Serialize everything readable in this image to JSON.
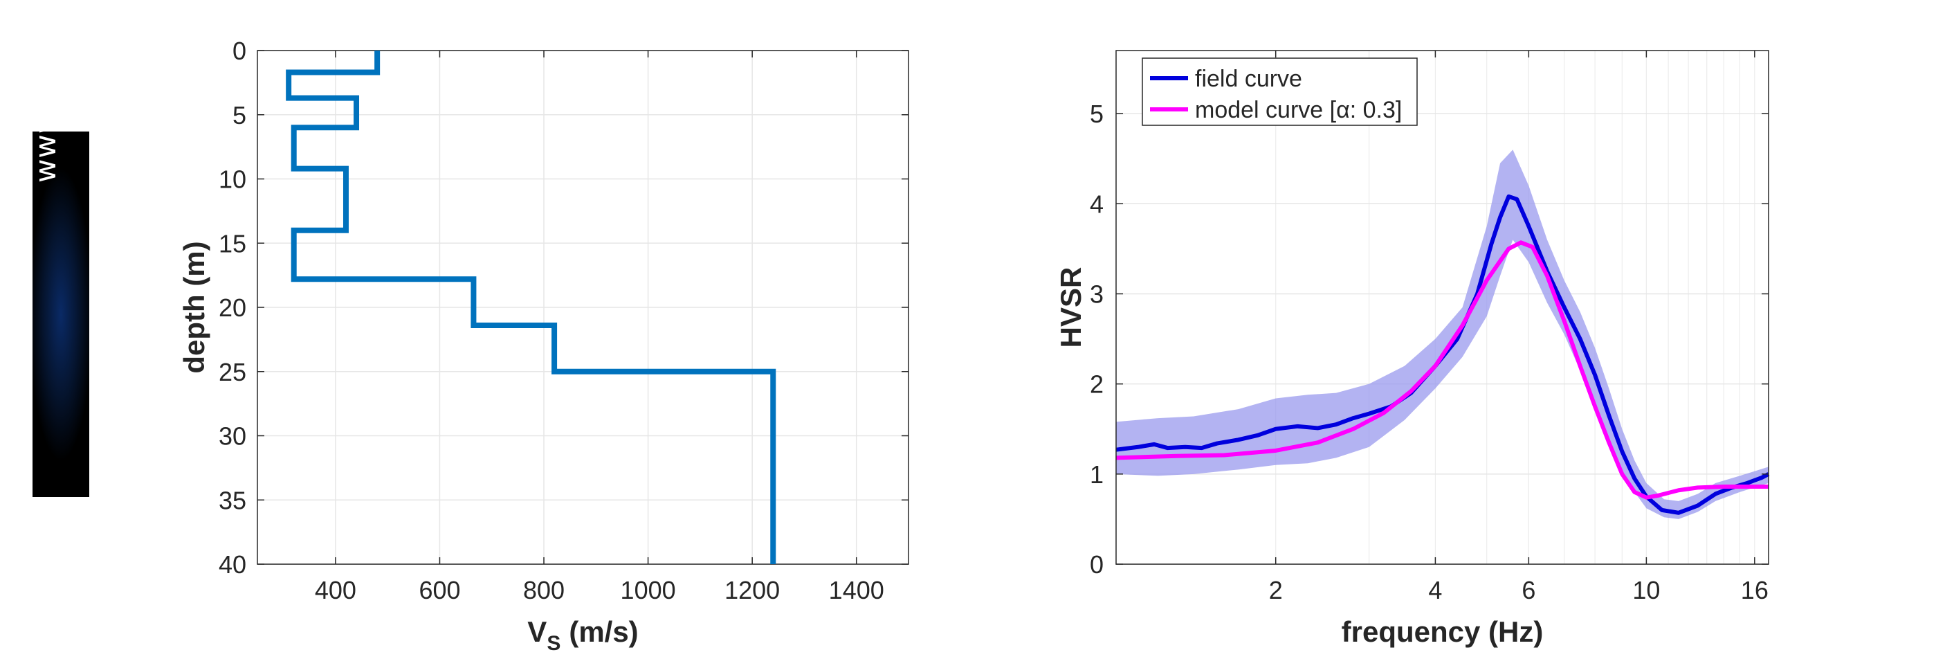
{
  "watermark": "www.winmasw.com",
  "chart_data": [
    {
      "type": "line",
      "name": "vs_profile",
      "xlabel": "V",
      "xlabel_sub": "S",
      "xlabel_unit": "(m/s)",
      "ylabel": "depth (m)",
      "xlim": [
        250,
        1500
      ],
      "ylim": [
        0,
        40
      ],
      "y_reversed": true,
      "x_ticks": [
        400,
        600,
        800,
        1000,
        1200,
        1400
      ],
      "y_ticks": [
        0,
        5,
        10,
        15,
        20,
        25,
        30,
        35,
        40
      ],
      "grid": true,
      "color": "#0072BD",
      "layers": [
        {
          "top": 0.0,
          "bottom": 1.7,
          "vs": 480
        },
        {
          "top": 1.7,
          "bottom": 3.7,
          "vs": 310
        },
        {
          "top": 3.7,
          "bottom": 6.0,
          "vs": 440
        },
        {
          "top": 6.0,
          "bottom": 9.2,
          "vs": 320
        },
        {
          "top": 9.2,
          "bottom": 14.0,
          "vs": 420
        },
        {
          "top": 14.0,
          "bottom": 17.8,
          "vs": 320
        },
        {
          "top": 17.8,
          "bottom": 21.4,
          "vs": 665
        },
        {
          "top": 21.4,
          "bottom": 25.0,
          "vs": 820
        },
        {
          "top": 25.0,
          "bottom": 40.0,
          "vs": 1240
        }
      ]
    },
    {
      "type": "line",
      "name": "hvsr",
      "xlabel": "frequency (Hz)",
      "ylabel": "HVSR",
      "x_scale": "log",
      "xlim": [
        1,
        17
      ],
      "ylim": [
        0,
        5.7
      ],
      "x_ticks": [
        2,
        4,
        6,
        10,
        16
      ],
      "y_ticks": [
        0,
        1,
        2,
        3,
        4,
        5
      ],
      "grid": true,
      "legend_position": "top-left",
      "series": [
        {
          "name": "field curve",
          "color": "#0000DD",
          "points": [
            [
              1.0,
              1.27
            ],
            [
              1.1,
              1.3
            ],
            [
              1.18,
              1.33
            ],
            [
              1.25,
              1.29
            ],
            [
              1.35,
              1.3
            ],
            [
              1.45,
              1.29
            ],
            [
              1.55,
              1.34
            ],
            [
              1.7,
              1.38
            ],
            [
              1.85,
              1.43
            ],
            [
              2.0,
              1.5
            ],
            [
              2.2,
              1.53
            ],
            [
              2.4,
              1.51
            ],
            [
              2.6,
              1.55
            ],
            [
              2.8,
              1.62
            ],
            [
              3.0,
              1.67
            ],
            [
              3.3,
              1.75
            ],
            [
              3.6,
              1.9
            ],
            [
              4.0,
              2.2
            ],
            [
              4.4,
              2.5
            ],
            [
              4.8,
              3.0
            ],
            [
              5.1,
              3.55
            ],
            [
              5.3,
              3.85
            ],
            [
              5.5,
              4.08
            ],
            [
              5.7,
              4.05
            ],
            [
              6.0,
              3.75
            ],
            [
              6.5,
              3.25
            ],
            [
              7.0,
              2.85
            ],
            [
              7.5,
              2.5
            ],
            [
              8.0,
              2.1
            ],
            [
              8.5,
              1.65
            ],
            [
              9.0,
              1.25
            ],
            [
              9.5,
              0.95
            ],
            [
              10.0,
              0.75
            ],
            [
              10.7,
              0.6
            ],
            [
              11.5,
              0.57
            ],
            [
              12.5,
              0.65
            ],
            [
              13.5,
              0.78
            ],
            [
              14.5,
              0.85
            ],
            [
              15.5,
              0.9
            ],
            [
              16.5,
              0.96
            ],
            [
              17.0,
              1.0
            ]
          ]
        },
        {
          "name": "model curve [α: 0.3]",
          "color": "#FF00FF",
          "points": [
            [
              1.0,
              1.18
            ],
            [
              1.3,
              1.2
            ],
            [
              1.6,
              1.21
            ],
            [
              2.0,
              1.26
            ],
            [
              2.4,
              1.35
            ],
            [
              2.8,
              1.5
            ],
            [
              3.2,
              1.68
            ],
            [
              3.6,
              1.92
            ],
            [
              4.0,
              2.2
            ],
            [
              4.5,
              2.65
            ],
            [
              5.0,
              3.15
            ],
            [
              5.5,
              3.5
            ],
            [
              5.8,
              3.57
            ],
            [
              6.1,
              3.52
            ],
            [
              6.5,
              3.2
            ],
            [
              7.0,
              2.7
            ],
            [
              7.5,
              2.2
            ],
            [
              8.0,
              1.75
            ],
            [
              8.5,
              1.35
            ],
            [
              9.0,
              1.0
            ],
            [
              9.5,
              0.8
            ],
            [
              10.0,
              0.74
            ],
            [
              10.5,
              0.76
            ],
            [
              11.5,
              0.82
            ],
            [
              12.5,
              0.85
            ],
            [
              14.0,
              0.86
            ],
            [
              17.0,
              0.86
            ]
          ]
        }
      ],
      "band": {
        "color": "#9999EE",
        "points": [
          [
            1.0,
            1.0,
            1.58
          ],
          [
            1.2,
            0.98,
            1.62
          ],
          [
            1.4,
            1.0,
            1.64
          ],
          [
            1.7,
            1.05,
            1.72
          ],
          [
            2.0,
            1.1,
            1.84
          ],
          [
            2.3,
            1.12,
            1.88
          ],
          [
            2.6,
            1.18,
            1.9
          ],
          [
            3.0,
            1.3,
            2.0
          ],
          [
            3.5,
            1.6,
            2.2
          ],
          [
            4.0,
            1.95,
            2.5
          ],
          [
            4.5,
            2.3,
            2.85
          ],
          [
            5.0,
            2.75,
            3.75
          ],
          [
            5.3,
            3.2,
            4.45
          ],
          [
            5.6,
            3.6,
            4.6
          ],
          [
            6.0,
            3.35,
            4.2
          ],
          [
            6.5,
            2.9,
            3.6
          ],
          [
            7.0,
            2.55,
            3.15
          ],
          [
            7.5,
            2.15,
            2.8
          ],
          [
            8.0,
            1.75,
            2.4
          ],
          [
            8.5,
            1.35,
            1.95
          ],
          [
            9.0,
            1.0,
            1.5
          ],
          [
            9.5,
            0.8,
            1.15
          ],
          [
            10.0,
            0.62,
            0.9
          ],
          [
            10.8,
            0.52,
            0.72
          ],
          [
            11.5,
            0.5,
            0.7
          ],
          [
            12.5,
            0.58,
            0.78
          ],
          [
            13.5,
            0.7,
            0.9
          ],
          [
            15.0,
            0.8,
            0.98
          ],
          [
            17.0,
            0.9,
            1.08
          ]
        ]
      }
    }
  ]
}
